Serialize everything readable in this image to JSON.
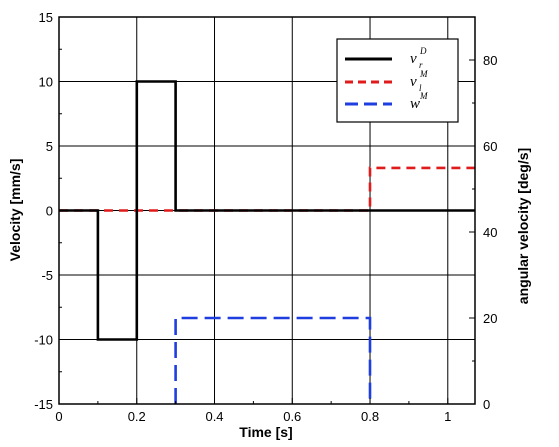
{
  "chart_data": {
    "type": "line",
    "xlabel": "Time [s]",
    "ylabel": "Velocity [mm/s]",
    "y2label": "angular velocity [deg/s]",
    "xlim": [
      0,
      1.07
    ],
    "ylim": [
      -15,
      15
    ],
    "y2lim": [
      0,
      90
    ],
    "x_ticks": [
      0,
      0.2,
      0.4,
      0.6,
      0.8,
      1
    ],
    "x_tick_labels": [
      "0",
      "0.2",
      "0.4",
      "0.6",
      "0.8",
      "1"
    ],
    "y_ticks": [
      -15,
      -10,
      -5,
      0,
      5,
      10,
      15
    ],
    "y_tick_labels": [
      "-15",
      "-10",
      "-5",
      "0",
      "5",
      "10",
      "15"
    ],
    "y2_ticks": [
      0,
      20,
      40,
      60,
      80
    ],
    "y2_tick_labels": [
      "0",
      "20",
      "40",
      "60",
      "80"
    ],
    "grid": true,
    "legend_position": "top-right",
    "series": [
      {
        "name": "v_r^D",
        "legend_main": "v",
        "legend_sub": "r",
        "legend_sup": "D",
        "axis": "left",
        "color": "#000000",
        "dash": "solid",
        "x": [
          0,
          0.1,
          0.1,
          0.2,
          0.2,
          0.3,
          0.3,
          1.07
        ],
        "y": [
          0,
          0,
          -10,
          -10,
          10,
          10,
          0,
          0
        ]
      },
      {
        "name": "v_l^M",
        "legend_main": "v",
        "legend_sub": "l",
        "legend_sup": "M",
        "axis": "left",
        "color": "#e01b1b",
        "dash": "short",
        "x": [
          0,
          0.8,
          0.8,
          1.07
        ],
        "y": [
          0,
          0,
          3.3,
          3.3
        ]
      },
      {
        "name": "w^M",
        "legend_main": "w",
        "legend_sub": "",
        "legend_sup": "M",
        "axis": "right",
        "color": "#1f3ee0",
        "dash": "long",
        "x": [
          0.3,
          0.3,
          0.8,
          0.8
        ],
        "y": [
          0,
          20,
          20,
          0
        ]
      }
    ]
  }
}
